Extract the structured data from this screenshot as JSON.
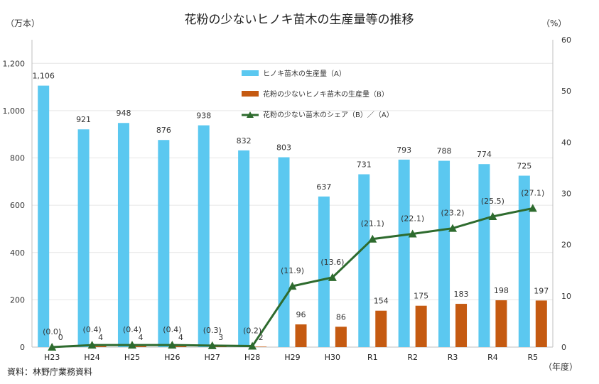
{
  "chart_data": {
    "type": "bar",
    "title": "花粉の少ないヒノキ苗木の生産量等の推移",
    "left_unit": "（万本）",
    "right_unit": "（%）",
    "x_unit": "（年度）",
    "source": "資料：林野庁業務資料",
    "categories": [
      "H23",
      "H24",
      "H25",
      "H26",
      "H27",
      "H28",
      "H29",
      "H30",
      "R1",
      "R2",
      "R3",
      "R4",
      "R5"
    ],
    "left_ticks": [
      "0",
      "200",
      "400",
      "600",
      "800",
      "1,000",
      "1,200"
    ],
    "right_ticks": [
      "0",
      "10",
      "20",
      "30",
      "40",
      "50",
      "60"
    ],
    "ylim_left": [
      0,
      1300
    ],
    "ylim_right": [
      0,
      60
    ],
    "series": [
      {
        "name": "ヒノキ苗木の生産量（A）",
        "kind": "bar",
        "color": "#5bc8f0",
        "values": [
          1106,
          921,
          948,
          876,
          938,
          832,
          803,
          637,
          731,
          793,
          788,
          774,
          725
        ],
        "labels": [
          "1,106",
          "921",
          "948",
          "876",
          "938",
          "832",
          "803",
          "637",
          "731",
          "793",
          "788",
          "774",
          "725"
        ]
      },
      {
        "name": "花粉の少ないヒノキ苗木の生産量（B）",
        "kind": "bar",
        "color": "#c55a11",
        "values": [
          0,
          4,
          4,
          4,
          3,
          2,
          96,
          86,
          154,
          175,
          183,
          198,
          197
        ],
        "labels": [
          "0",
          "4",
          "4",
          "4",
          "3",
          "2",
          "96",
          "86",
          "154",
          "175",
          "183",
          "198",
          "197"
        ]
      },
      {
        "name": "花粉の少ない苗木のシェア（B）／（A）",
        "kind": "line",
        "color": "#2e6b2e",
        "values": [
          0.0,
          0.4,
          0.4,
          0.4,
          0.3,
          0.2,
          11.9,
          13.6,
          21.1,
          22.1,
          23.2,
          25.5,
          27.1
        ],
        "labels": [
          "(0.0)",
          "(0.4)",
          "(0.4)",
          "(0.4)",
          "(0.3)",
          "(0.2)",
          "(11.9)",
          "(13.6)",
          "(21.1)",
          "(22.1)",
          "(23.2)",
          "(25.5)",
          "(27.1)"
        ]
      }
    ]
  }
}
